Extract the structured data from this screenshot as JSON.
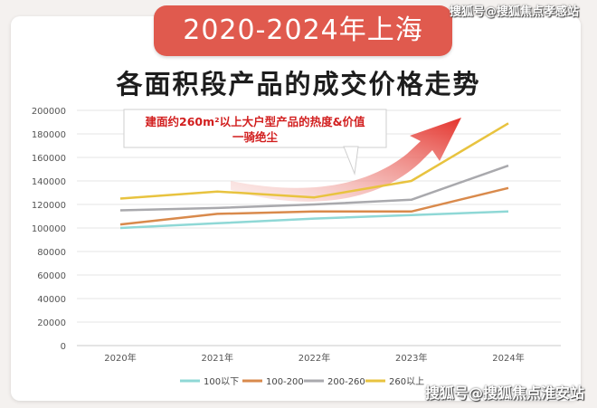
{
  "banner": {
    "title": "2020-2024年上海"
  },
  "headline": "各面积段产品的成交价格走势",
  "callout": {
    "line1": "建面约260m²以上大户型产品的热度&价值",
    "line2": "一骑绝尘"
  },
  "watermark": {
    "top": "搜狐号@搜狐焦点孝感站",
    "bottom": "搜狐号@搜狐焦点淮安站"
  },
  "colors": {
    "banner": "#e05a4e",
    "callout_text": "#d21f1f",
    "arrow": "#e8443a",
    "series": [
      "#8fd8d6",
      "#d98a4c",
      "#a9a9ad",
      "#e8c33f"
    ]
  },
  "chart_data": {
    "type": "line",
    "x": [
      "2020年",
      "2021年",
      "2022年",
      "2023年",
      "2024年"
    ],
    "yticks": [
      "0",
      "20000",
      "40000",
      "60000",
      "80000",
      "100000",
      "120000",
      "140000",
      "160000",
      "180000",
      "200000"
    ],
    "ylim": [
      0,
      200000
    ],
    "grid": true,
    "legend_position": "bottom",
    "series": [
      {
        "name": "100以下",
        "values": [
          100000,
          104000,
          108000,
          111000,
          114000
        ]
      },
      {
        "name": "100-200",
        "values": [
          103000,
          112000,
          114000,
          114000,
          134000
        ]
      },
      {
        "name": "200-260",
        "values": [
          115000,
          117000,
          120000,
          124000,
          153000
        ]
      },
      {
        "name": "260以上",
        "values": [
          125000,
          131000,
          126000,
          140000,
          189000
        ]
      }
    ]
  }
}
